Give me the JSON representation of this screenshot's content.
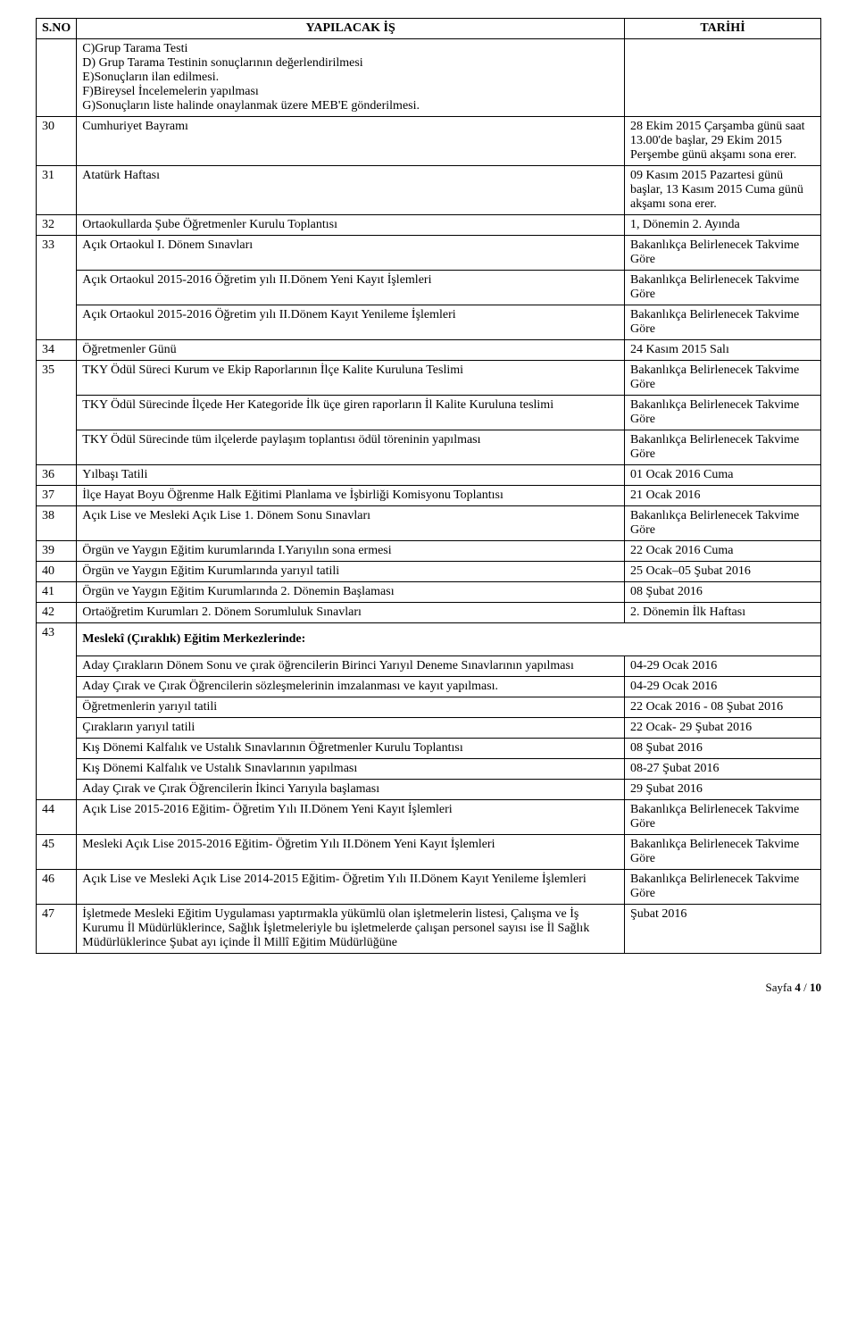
{
  "header": {
    "sno": "S.NO",
    "work": "YAPILACAK İŞ",
    "date": "TARİHİ"
  },
  "rows": [
    {
      "sno": "",
      "work": "C)Grup Tarama Testi\nD) Grup Tarama Testinin sonuçlarının değerlendirilmesi\nE)Sonuçların ilan edilmesi.\nF)Bireysel İncelemelerin yapılması\nG)Sonuçların liste halinde onaylanmak üzere MEB'E gönderilmesi.",
      "date": ""
    },
    {
      "sno": "30",
      "work": "Cumhuriyet Bayramı",
      "date": "28 Ekim 2015 Çarşamba günü saat 13.00'de başlar, 29 Ekim 2015 Perşembe günü akşamı sona erer."
    },
    {
      "sno": "31",
      "work": "Atatürk Haftası",
      "date": "09 Kasım 2015 Pazartesi günü başlar, 13 Kasım 2015 Cuma günü akşamı sona erer."
    },
    {
      "sno": "32",
      "work": "Ortaokullarda Şube Öğretmenler Kurulu Toplantısı",
      "date": "1, Dönemin 2. Ayında"
    },
    {
      "sno": "33",
      "sub": [
        {
          "work": "Açık Ortaokul I. Dönem Sınavları",
          "date": "Bakanlıkça Belirlenecek Takvime Göre"
        },
        {
          "work": "Açık Ortaokul   2015-2016 Öğretim yılı II.Dönem Yeni Kayıt İşlemleri",
          "date": "Bakanlıkça Belirlenecek Takvime Göre"
        },
        {
          "work": "Açık Ortaokul  2015-2016 Öğretim yılı II.Dönem Kayıt Yenileme İşlemleri",
          "date": "Bakanlıkça Belirlenecek Takvime Göre"
        }
      ]
    },
    {
      "sno": "34",
      "work": "Öğretmenler Günü",
      "date": "24 Kasım 2015 Salı"
    },
    {
      "sno": "35",
      "sub": [
        {
          "work": "TKY Ödül Süreci Kurum ve Ekip Raporlarının İlçe Kalite Kuruluna Teslimi",
          "date": "Bakanlıkça Belirlenecek Takvime Göre"
        },
        {
          "work": "TKY Ödül Sürecinde İlçede Her Kategoride İlk üçe giren raporların İl Kalite Kuruluna teslimi",
          "date": "Bakanlıkça Belirlenecek Takvime Göre"
        },
        {
          "work": "TKY Ödül Sürecinde tüm ilçelerde paylaşım toplantısı ödül töreninin yapılması",
          "date": "Bakanlıkça Belirlenecek Takvime Göre"
        }
      ]
    },
    {
      "sno": "36",
      "work": "Yılbaşı Tatili",
      "date": "01 Ocak 2016 Cuma"
    },
    {
      "sno": "37",
      "work": "İlçe Hayat Boyu Öğrenme Halk Eğitimi Planlama ve İşbirliği Komisyonu Toplantısı",
      "date": "21 Ocak 2016"
    },
    {
      "sno": "38",
      "work": "Açık Lise ve Mesleki Açık Lise 1. Dönem Sonu Sınavları",
      "date": "Bakanlıkça Belirlenecek Takvime Göre"
    },
    {
      "sno": "39",
      "work": "Örgün ve Yaygın Eğitim kurumlarında I.Yarıyılın sona ermesi",
      "date": "22 Ocak 2016 Cuma"
    },
    {
      "sno": "40",
      "work": "Örgün ve Yaygın Eğitim Kurumlarında yarıyıl tatili",
      "date": "25 Ocak–05 Şubat 2016"
    },
    {
      "sno": "41",
      "work": "Örgün ve Yaygın Eğitim Kurumlarında 2. Dönemin Başlaması",
      "date": "08 Şubat 2016"
    },
    {
      "sno": "42",
      "work": "Ortaöğretim Kurumları 2. Dönem Sorumluluk Sınavları",
      "date": "2. Dönemin İlk Haftası"
    },
    {
      "sno": "43",
      "heading": "Meslekî (Çıraklık) Eğitim Merkezlerinde:",
      "sub": [
        {
          "work": "Aday Çırakların Dönem Sonu ve çırak öğrencilerin Birinci Yarıyıl Deneme Sınavlarının yapılması",
          "date": "04-29 Ocak 2016"
        },
        {
          "work": "Aday Çırak ve Çırak Öğrencilerin sözleşmelerinin imzalanması ve kayıt yapılması.",
          "date": "04-29 Ocak 2016"
        },
        {
          "work": "Öğretmenlerin yarıyıl tatili",
          "date": "22 Ocak 2016 - 08 Şubat 2016"
        },
        {
          "work": "Çırakların yarıyıl tatili",
          "date": "22 Ocak- 29 Şubat 2016"
        },
        {
          "work": "Kış Dönemi Kalfalık ve Ustalık Sınavlarının Öğretmenler Kurulu Toplantısı",
          "date": "08 Şubat 2016"
        },
        {
          "work": "Kış Dönemi Kalfalık ve Ustalık Sınavlarının yapılması",
          "date": "08-27 Şubat 2016"
        },
        {
          "work": "Aday Çırak ve Çırak Öğrencilerin İkinci Yarıyıla başlaması",
          "date": "29 Şubat 2016"
        }
      ]
    },
    {
      "sno": "44",
      "work": "Açık Lise 2015-2016 Eğitim- Öğretim Yılı II.Dönem Yeni Kayıt İşlemleri",
      "date": "Bakanlıkça Belirlenecek Takvime Göre"
    },
    {
      "sno": "45",
      "work": "Mesleki  Açık Lise 2015-2016 Eğitim- Öğretim Yılı II.Dönem Yeni Kayıt İşlemleri",
      "date": "Bakanlıkça Belirlenecek Takvime Göre"
    },
    {
      "sno": "46",
      "work": "Açık Lise ve Mesleki Açık Lise 2014-2015 Eğitim- Öğretim Yılı II.Dönem Kayıt Yenileme İşlemleri",
      "date": "Bakanlıkça Belirlenecek Takvime Göre"
    },
    {
      "sno": "47",
      "work": "İşletmede Mesleki Eğitim Uygulaması yaptırmakla yükümlü olan işletmelerin listesi, Çalışma ve İş Kurumu İl Müdürlüklerince, Sağlık İşletmeleriyle bu işletmelerde çalışan personel sayısı ise İl Sağlık Müdürlüklerince Şubat ayı içinde İl Millî Eğitim Müdürlüğüne",
      "date": "Şubat 2016"
    }
  ],
  "footer": {
    "page_label": "Sayfa",
    "page_num": "4",
    "page_sep": "/",
    "page_total": "10"
  }
}
